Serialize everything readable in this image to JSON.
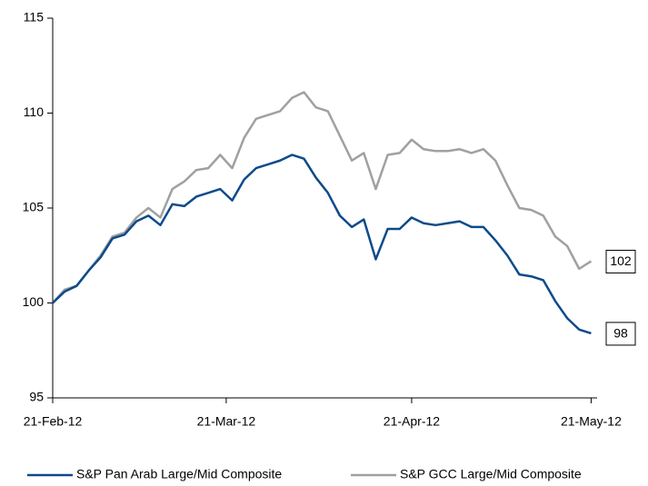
{
  "chart_data": {
    "type": "line",
    "x": [
      "2012-02-21",
      "2012-02-23",
      "2012-02-25",
      "2012-02-27",
      "2012-02-29",
      "2012-03-02",
      "2012-03-04",
      "2012-03-06",
      "2012-03-08",
      "2012-03-10",
      "2012-03-12",
      "2012-03-14",
      "2012-03-16",
      "2012-03-18",
      "2012-03-20",
      "2012-03-22",
      "2012-03-24",
      "2012-03-26",
      "2012-03-28",
      "2012-03-30",
      "2012-04-01",
      "2012-04-03",
      "2012-04-05",
      "2012-04-07",
      "2012-04-09",
      "2012-04-11",
      "2012-04-13",
      "2012-04-15",
      "2012-04-17",
      "2012-04-19",
      "2012-04-21",
      "2012-04-23",
      "2012-04-25",
      "2012-04-27",
      "2012-04-29",
      "2012-05-01",
      "2012-05-03",
      "2012-05-05",
      "2012-05-07",
      "2012-05-09",
      "2012-05-11",
      "2012-05-13",
      "2012-05-15",
      "2012-05-17",
      "2012-05-19",
      "2012-05-21"
    ],
    "series": [
      {
        "name": "S&P Pan Arab Large/Mid Composite",
        "color": "#0d4a8a",
        "values": [
          100,
          100.6,
          100.9,
          101.7,
          102.4,
          103.4,
          103.6,
          104.3,
          104.6,
          104.1,
          105.2,
          105.1,
          105.6,
          105.8,
          106.0,
          105.4,
          106.5,
          107.1,
          107.3,
          107.5,
          107.8,
          107.6,
          106.6,
          105.8,
          104.6,
          104.0,
          104.4,
          102.3,
          103.9,
          103.9,
          104.5,
          104.2,
          104.1,
          104.2,
          104.3,
          104.0,
          104.0,
          103.3,
          102.5,
          101.5,
          101.4,
          101.2,
          100.1,
          99.2,
          98.6,
          98.4
        ]
      },
      {
        "name": "S&P GCC Large/Mid Composite",
        "color": "#a0a0a0",
        "values": [
          100,
          100.7,
          100.9,
          101.7,
          102.5,
          103.5,
          103.7,
          104.5,
          105.0,
          104.5,
          106.0,
          106.4,
          107.0,
          107.1,
          107.8,
          107.1,
          108.7,
          109.7,
          109.9,
          110.1,
          110.8,
          111.1,
          110.3,
          110.1,
          108.8,
          107.5,
          107.9,
          106.0,
          107.8,
          107.9,
          108.6,
          108.1,
          108.0,
          108.0,
          108.1,
          107.9,
          108.1,
          107.5,
          106.2,
          105.0,
          104.9,
          104.6,
          103.5,
          103.0,
          101.8,
          102.2
        ]
      }
    ],
    "annotations": [
      "98",
      "102"
    ],
    "xlim": [
      "2012-02-21",
      "2012-05-22"
    ],
    "xticks": [
      {
        "value": "2012-02-21",
        "label": "21-Feb-12"
      },
      {
        "value": "2012-03-21",
        "label": "21-Mar-12"
      },
      {
        "value": "2012-04-21",
        "label": "21-Apr-12"
      },
      {
        "value": "2012-05-21",
        "label": "21-May-12"
      }
    ],
    "ylim": [
      95,
      115
    ],
    "yticks": [
      95,
      100,
      105,
      110,
      115
    ],
    "grid": false,
    "legend": "bottom"
  }
}
